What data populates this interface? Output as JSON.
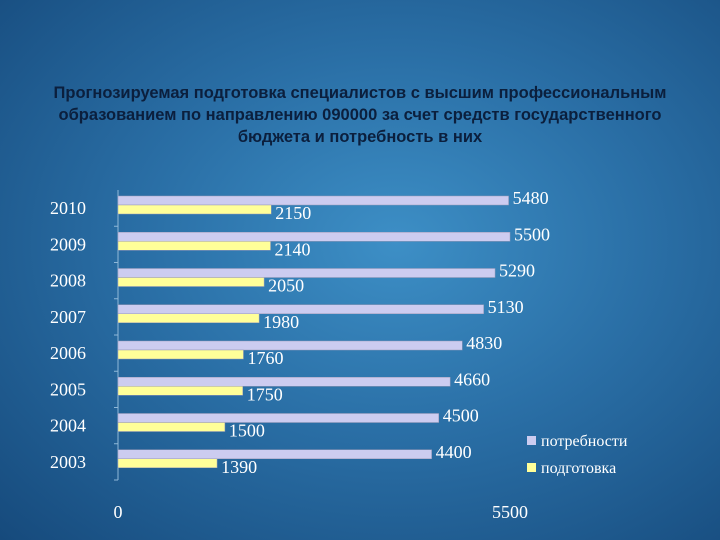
{
  "chart_data": {
    "type": "bar",
    "orientation": "horizontal",
    "title": "Прогнозируемая подготовка специалистов с высшим профессиональным образованием по направлению 090000 за счет средств государственного бюджета и потребность в них",
    "categories": [
      "2010",
      "2009",
      "2008",
      "2007",
      "2006",
      "2005",
      "2004",
      "2003"
    ],
    "series": [
      {
        "name": "потребности",
        "color": "#ccccf0",
        "values": [
          5480,
          5500,
          5290,
          5130,
          4830,
          4660,
          4500,
          4400
        ]
      },
      {
        "name": "подготовка",
        "color": "#ffff99",
        "values": [
          2150,
          2140,
          2050,
          1980,
          1760,
          1750,
          1500,
          1390
        ]
      }
    ],
    "xlim": [
      0,
      5500
    ],
    "x_ticks": [
      "0",
      "5500"
    ],
    "grid": false,
    "legend_position": "bottom-right"
  }
}
